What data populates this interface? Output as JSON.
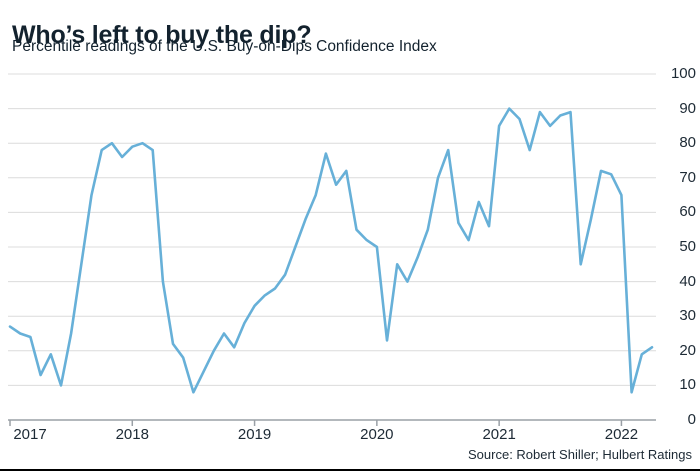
{
  "page": {
    "title": "Who’s left to buy the dip?",
    "subtitle": "Percentile readings of the U.S. Buy-on-Dips Confidence Index",
    "source": "Source: Robert Shiller; Hulbert Ratings"
  },
  "colors": {
    "line": "#67b0d8",
    "grid": "#dcdcdc",
    "axis": "#9aa0a6",
    "text": "#1d2a35"
  },
  "chart_data": {
    "type": "line",
    "title": "Who’s left to buy the dip?",
    "subtitle": "Percentile readings of the U.S. Buy-on-Dips Confidence Index",
    "source": "Source: Robert Shiller; Hulbert Ratings",
    "ylim": [
      0,
      100
    ],
    "y_ticks": [
      0,
      10,
      20,
      30,
      40,
      50,
      60,
      70,
      80,
      90,
      100
    ],
    "grid": "horizontal",
    "legend": "none",
    "y_axis_side": "right",
    "x_labels": [
      "2017",
      "2018",
      "2019",
      "2020",
      "2021",
      "2022"
    ],
    "x": [
      "2017-01",
      "2017-02",
      "2017-03",
      "2017-04",
      "2017-05",
      "2017-06",
      "2017-07",
      "2017-08",
      "2017-09",
      "2017-10",
      "2017-11",
      "2017-12",
      "2018-01",
      "2018-02",
      "2018-03",
      "2018-04",
      "2018-05",
      "2018-06",
      "2018-07",
      "2018-08",
      "2018-09",
      "2018-10",
      "2018-11",
      "2018-12",
      "2019-01",
      "2019-02",
      "2019-03",
      "2019-04",
      "2019-05",
      "2019-06",
      "2019-07",
      "2019-08",
      "2019-09",
      "2019-10",
      "2019-11",
      "2019-12",
      "2020-01",
      "2020-02",
      "2020-03",
      "2020-04",
      "2020-05",
      "2020-06",
      "2020-07",
      "2020-08",
      "2020-09",
      "2020-10",
      "2020-11",
      "2020-12",
      "2021-01",
      "2021-02",
      "2021-03",
      "2021-04",
      "2021-05",
      "2021-06",
      "2021-07",
      "2021-08",
      "2021-09",
      "2021-10",
      "2021-11",
      "2021-12",
      "2022-01",
      "2022-02",
      "2022-03",
      "2022-04"
    ],
    "series": [
      {
        "name": "U.S. Buy-on-Dips Confidence Index percentile",
        "values": [
          27,
          25,
          24,
          13,
          19,
          10,
          25,
          45,
          65,
          78,
          80,
          76,
          79,
          80,
          78,
          40,
          22,
          18,
          8,
          14,
          20,
          25,
          21,
          28,
          33,
          36,
          38,
          42,
          50,
          58,
          65,
          77,
          68,
          72,
          55,
          52,
          50,
          23,
          45,
          40,
          47,
          55,
          70,
          78,
          57,
          52,
          63,
          56,
          85,
          90,
          87,
          78,
          89,
          85,
          88,
          89,
          45,
          58,
          72,
          71,
          65,
          8,
          19,
          21
        ]
      }
    ]
  }
}
